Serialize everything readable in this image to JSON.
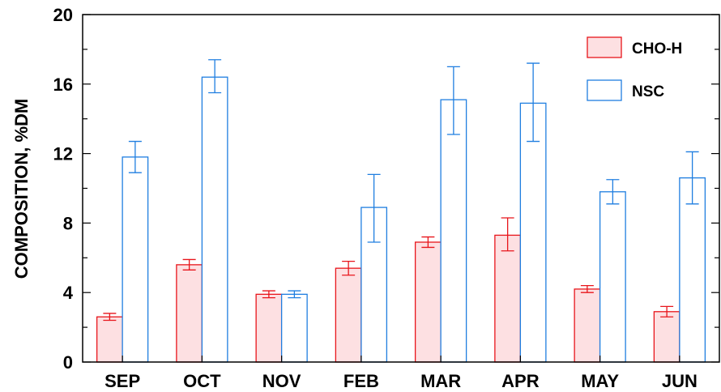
{
  "chart_data": {
    "type": "bar",
    "ylabel": "COMPOSITION, %DM",
    "xlabel": "",
    "ylim": [
      0,
      20
    ],
    "yticks": [
      0,
      4,
      8,
      12,
      16,
      20
    ],
    "categories": [
      "SEP",
      "OCT",
      "NOV",
      "FEB",
      "MAR",
      "APR",
      "MAY",
      "JUN"
    ],
    "legend_position": "top-right",
    "series": [
      {
        "name": "CHO-H",
        "stroke": "#e8151b",
        "fill": "#fde0e2",
        "values": [
          2.6,
          5.6,
          3.9,
          5.4,
          6.9,
          7.3,
          4.2,
          2.9
        ],
        "err_low": [
          2.4,
          5.3,
          3.7,
          5.0,
          6.6,
          6.4,
          4.0,
          2.6
        ],
        "err_high": [
          2.8,
          5.9,
          4.1,
          5.8,
          7.2,
          8.3,
          4.4,
          3.2
        ]
      },
      {
        "name": "NSC",
        "stroke": "#1f7ee0",
        "fill": "#ffffff",
        "values": [
          11.8,
          16.4,
          3.9,
          8.9,
          15.1,
          14.9,
          9.8,
          10.6
        ],
        "err_low": [
          10.9,
          15.5,
          3.7,
          6.9,
          13.1,
          12.7,
          9.1,
          9.1
        ],
        "err_high": [
          12.7,
          17.4,
          4.1,
          10.8,
          17.0,
          17.2,
          10.5,
          12.1
        ]
      }
    ]
  }
}
